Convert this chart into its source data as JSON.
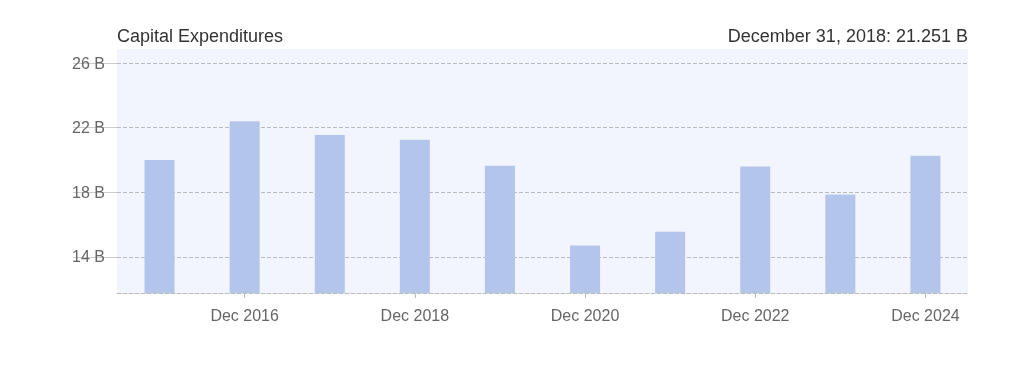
{
  "chart_data": {
    "type": "bar",
    "title": "Capital Expenditures",
    "annotations": [
      "December 31, 2018: 21.251 B"
    ],
    "categories": [
      null,
      "Dec 2016",
      null,
      "Dec 2018",
      null,
      "Dec 2020",
      null,
      "Dec 2022",
      null,
      "Dec 2024"
    ],
    "values": [
      20.0,
      22.4,
      21.55,
      21.251,
      19.64,
      14.7,
      15.56,
      19.6,
      17.86,
      20.26
    ],
    "color": "#b3c5eb",
    "ylim": [
      11.76,
      26.87
    ],
    "yticks": [
      {
        "value": 14,
        "label": "14 B"
      },
      {
        "value": 18,
        "label": "18 B"
      },
      {
        "value": 22,
        "label": "22 B"
      },
      {
        "value": 26,
        "label": "26 B"
      }
    ],
    "grid": "y"
  }
}
